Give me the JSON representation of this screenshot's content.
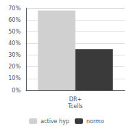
{
  "chart_data": {
    "type": "bar",
    "categories": [
      "DR+\nTcells"
    ],
    "series": [
      {
        "name": "active hyp",
        "color": "#d0d0d0",
        "values": [
          68
        ]
      },
      {
        "name": "normo",
        "color": "#3a3a3a",
        "values": [
          35
        ]
      }
    ],
    "ylim": [
      0,
      70
    ],
    "yticks": [
      {
        "value": 0,
        "label": "0%"
      },
      {
        "value": 10,
        "label": "10%"
      },
      {
        "value": 20,
        "label": "20%"
      },
      {
        "value": 30,
        "label": "30%"
      },
      {
        "value": 40,
        "label": "40%"
      },
      {
        "value": 50,
        "label": "50%"
      },
      {
        "value": 60,
        "label": "60%"
      },
      {
        "value": 70,
        "label": "70%"
      }
    ],
    "grid": true,
    "legend": "bottom"
  }
}
